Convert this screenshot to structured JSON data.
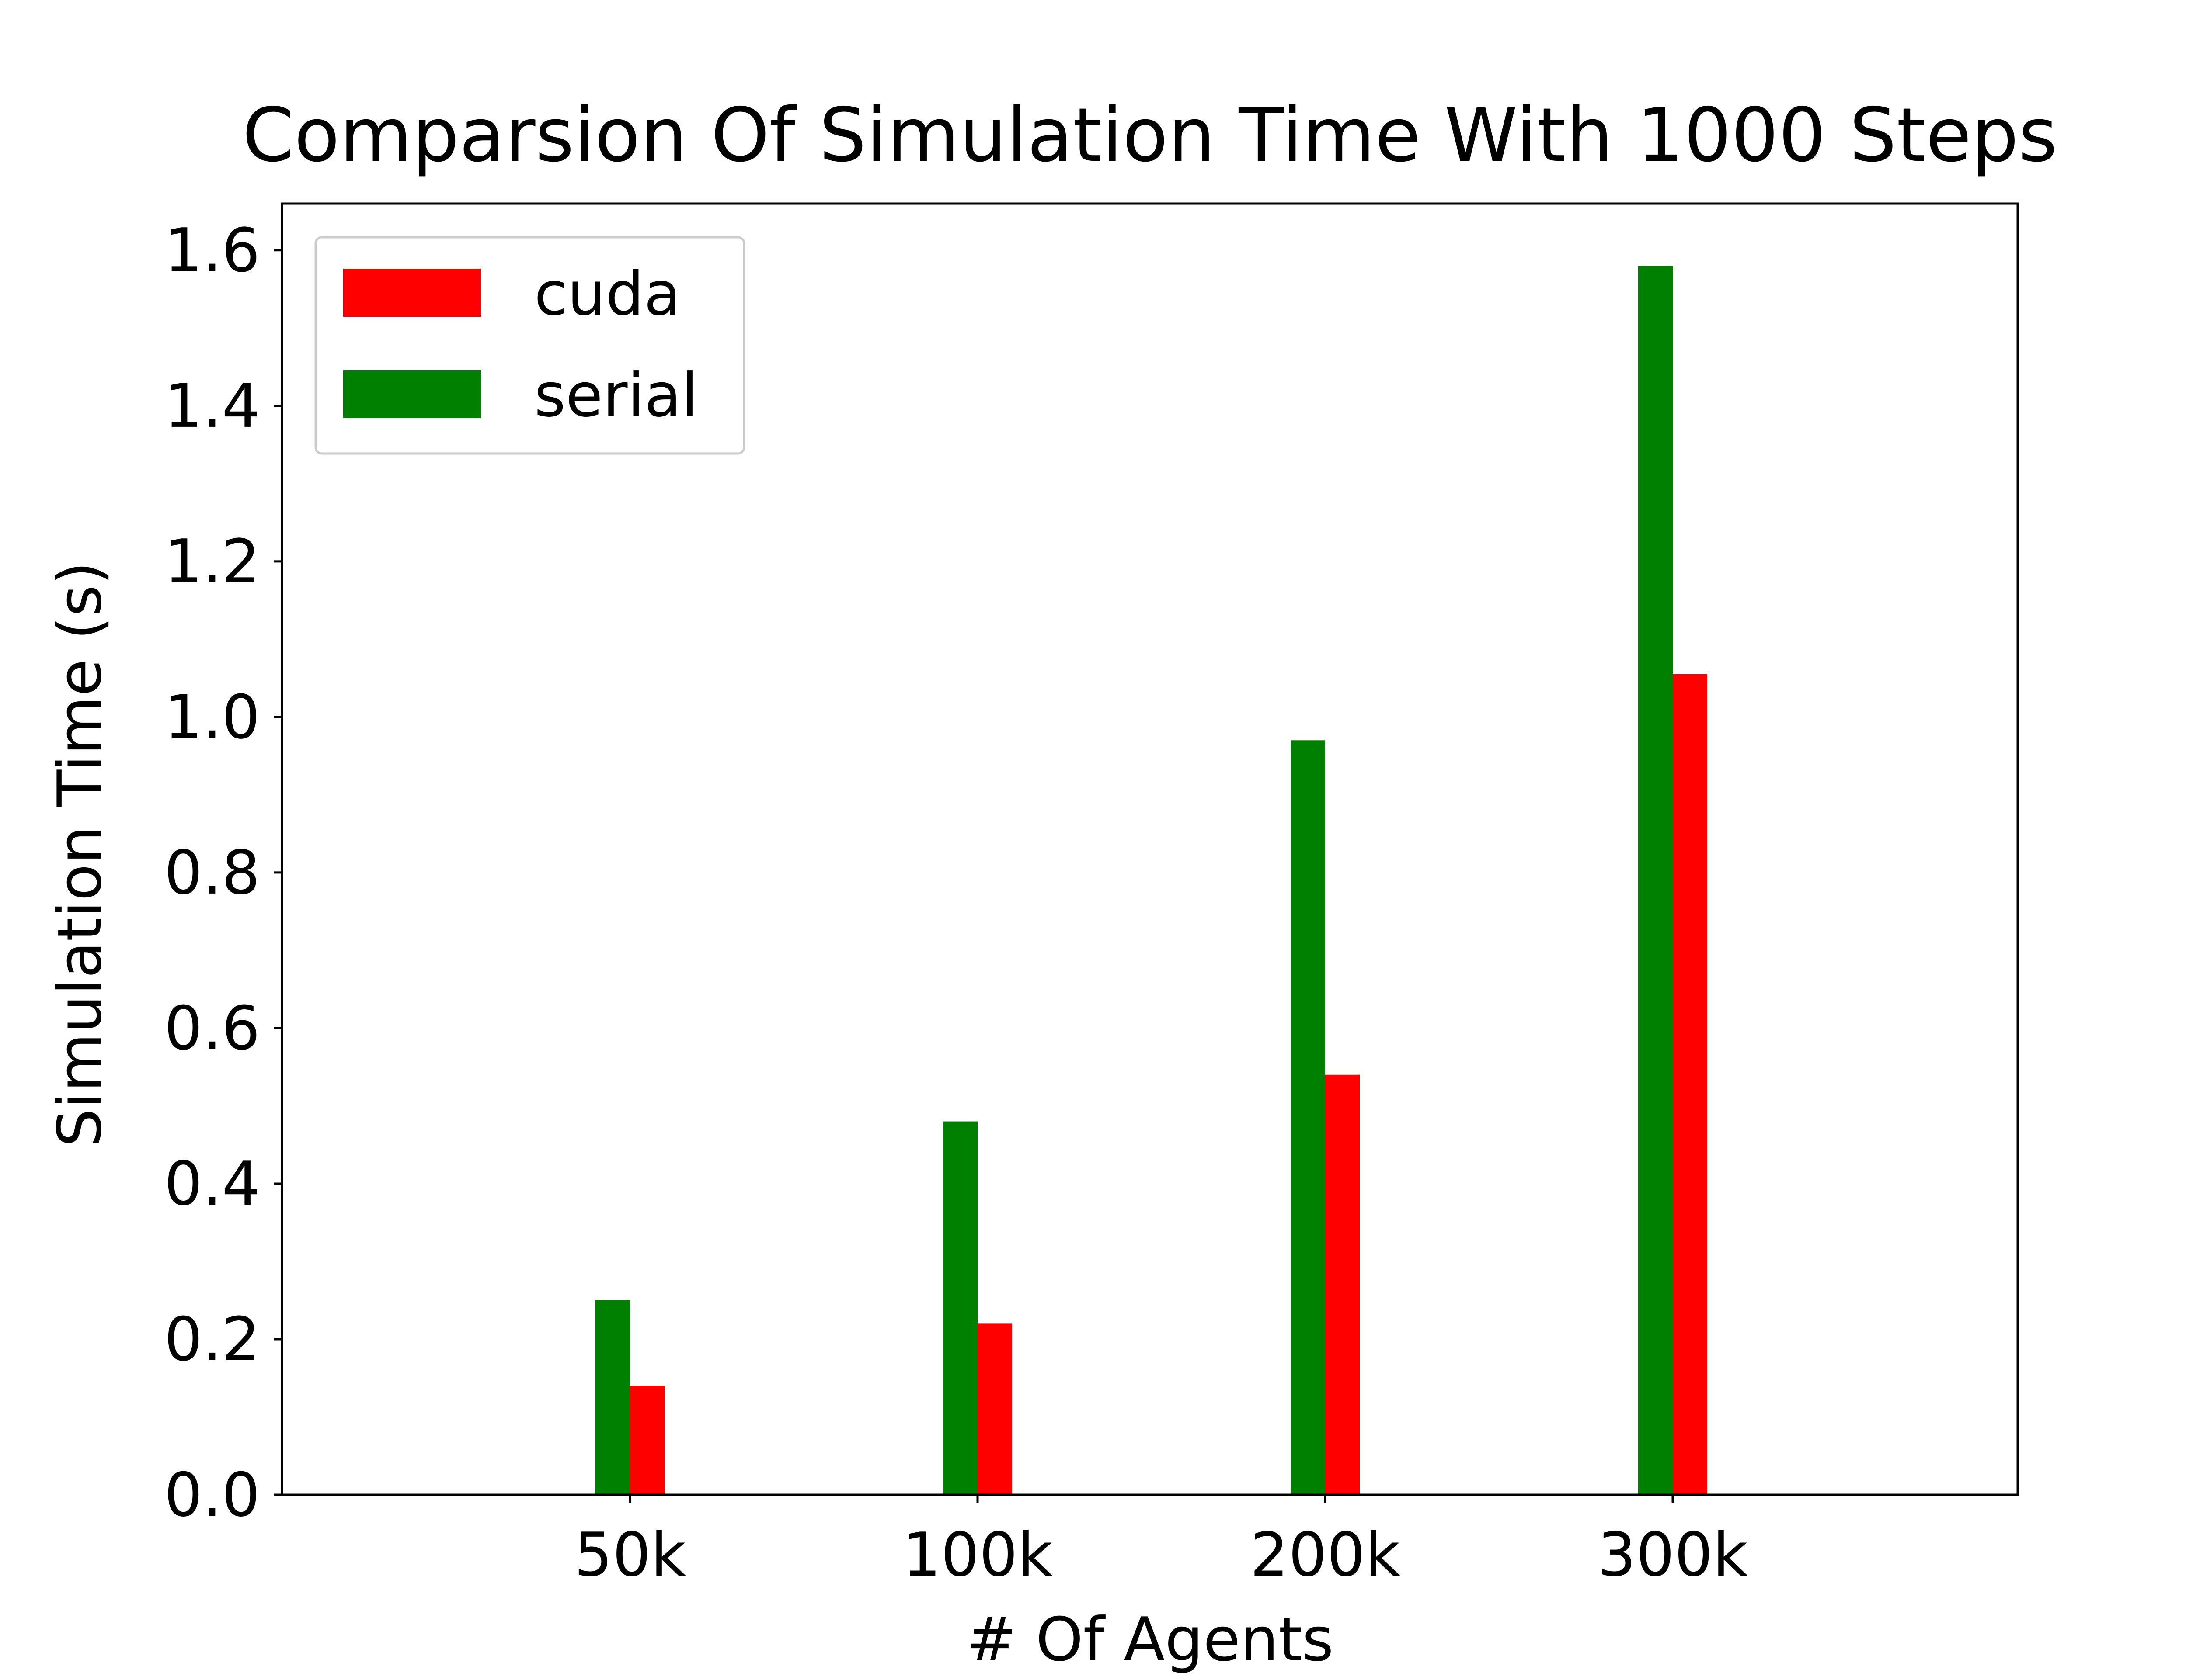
{
  "chart_data": {
    "type": "bar",
    "title": "Comparsion Of Simulation Time With 1000 Steps",
    "xlabel": "# Of Agents",
    "ylabel": "Simulation Time (s)",
    "categories": [
      "50k",
      "100k",
      "200k",
      "300k"
    ],
    "series": [
      {
        "name": "serial",
        "color": "#008000",
        "values": [
          0.25,
          0.48,
          0.97,
          1.58
        ]
      },
      {
        "name": "cuda",
        "color": "#ff0000",
        "values": [
          0.14,
          0.22,
          0.54,
          1.055
        ]
      }
    ],
    "legend_order": [
      "cuda",
      "serial"
    ],
    "legend_position": "top-left",
    "ylim": [
      0,
      1.66
    ],
    "yticks": [
      "0.0",
      "0.2",
      "0.4",
      "0.6",
      "0.8",
      "1.0",
      "1.2",
      "1.4",
      "1.6"
    ],
    "grid": false
  }
}
